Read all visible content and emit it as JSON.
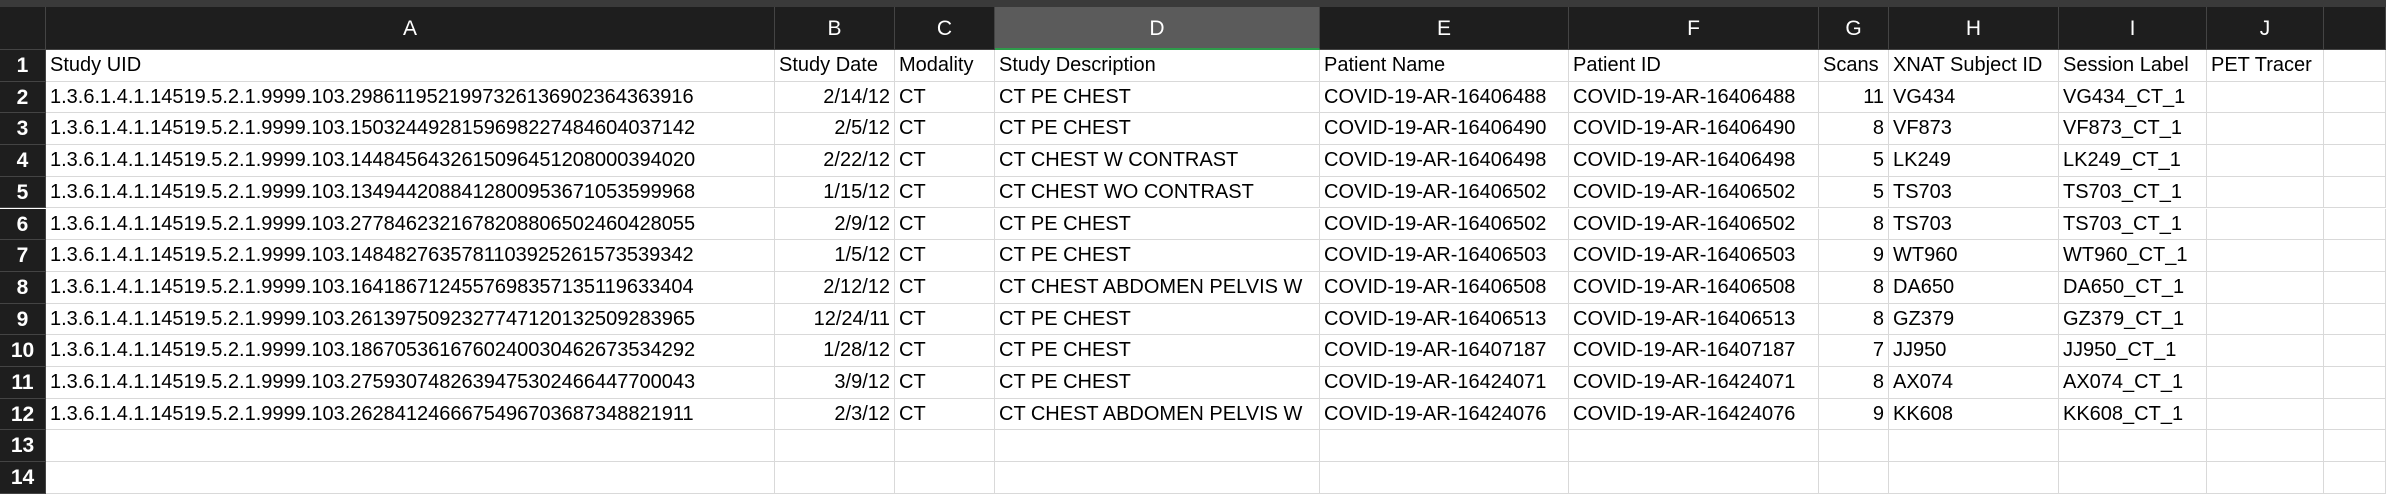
{
  "column_letters": [
    "A",
    "B",
    "C",
    "D",
    "E",
    "F",
    "G",
    "H",
    "I",
    "J"
  ],
  "row_numbers": [
    1,
    2,
    3,
    4,
    5,
    6,
    7,
    8,
    9,
    10,
    11,
    12,
    13,
    14
  ],
  "header": [
    "Study UID",
    "Study Date",
    "Modality",
    "Study Description",
    "Patient Name",
    "Patient ID",
    "Scans",
    "XNAT Subject ID",
    "Session Label",
    "PET Tracer"
  ],
  "rows": [
    [
      "1.3.6.1.4.1.14519.5.2.1.9999.103.2986119521997326136902364363916",
      "2/14/12",
      "CT",
      "CT PE CHEST",
      "COVID-19-AR-16406488",
      "COVID-19-AR-16406488",
      11,
      "VG434",
      "VG434_CT_1"
    ],
    [
      "1.3.6.1.4.1.14519.5.2.1.9999.103.1503244928159698227484604037142",
      "2/5/12",
      "CT",
      "CT PE CHEST",
      "COVID-19-AR-16406490",
      "COVID-19-AR-16406490",
      8,
      "VF873",
      "VF873_CT_1"
    ],
    [
      "1.3.6.1.4.1.14519.5.2.1.9999.103.1448456432615096451208000394020",
      "2/22/12",
      "CT",
      "CT CHEST W CONTRAST",
      "COVID-19-AR-16406498",
      "COVID-19-AR-16406498",
      5,
      "LK249",
      "LK249_CT_1"
    ],
    [
      "1.3.6.1.4.1.14519.5.2.1.9999.103.1349442088412800953671053599968",
      "1/15/12",
      "CT",
      "CT CHEST WO CONTRAST",
      "COVID-19-AR-16406502",
      "COVID-19-AR-16406502",
      5,
      "TS703",
      "TS703_CT_1"
    ],
    [
      "1.3.6.1.4.1.14519.5.2.1.9999.103.2778462321678208806502460428055",
      "2/9/12",
      "CT",
      "CT PE CHEST",
      "COVID-19-AR-16406502",
      "COVID-19-AR-16406502",
      8,
      "TS703",
      "TS703_CT_1"
    ],
    [
      "1.3.6.1.4.1.14519.5.2.1.9999.103.1484827635781103925261573539342",
      "1/5/12",
      "CT",
      "CT PE CHEST",
      "COVID-19-AR-16406503",
      "COVID-19-AR-16406503",
      9,
      "WT960",
      "WT960_CT_1"
    ],
    [
      "1.3.6.1.4.1.14519.5.2.1.9999.103.1641867124557698357135119633404",
      "2/12/12",
      "CT",
      "CT CHEST ABDOMEN PELVIS W",
      "COVID-19-AR-16406508",
      "COVID-19-AR-16406508",
      8,
      "DA650",
      "DA650_CT_1"
    ],
    [
      "1.3.6.1.4.1.14519.5.2.1.9999.103.2613975092327747120132509283965",
      "12/24/11",
      "CT",
      "CT PE CHEST",
      "COVID-19-AR-16406513",
      "COVID-19-AR-16406513",
      8,
      "GZ379",
      "GZ379_CT_1"
    ],
    [
      "1.3.6.1.4.1.14519.5.2.1.9999.103.1867053616760240030462673534292",
      "1/28/12",
      "CT",
      "CT PE CHEST",
      "COVID-19-AR-16407187",
      "COVID-19-AR-16407187",
      7,
      "JJ950",
      "JJ950_CT_1"
    ],
    [
      "1.3.6.1.4.1.14519.5.2.1.9999.103.2759307482639475302466447700043",
      "3/9/12",
      "CT",
      "CT PE CHEST",
      "COVID-19-AR-16424071",
      "COVID-19-AR-16424071",
      8,
      "AX074",
      "AX074_CT_1"
    ],
    [
      "1.3.6.1.4.1.14519.5.2.1.9999.103.2628412466675496703687348821911",
      "2/3/12",
      "CT",
      "CT CHEST ABDOMEN PELVIS W",
      "COVID-19-AR-16424076",
      "COVID-19-AR-16424076",
      9,
      "KK608",
      "KK608_CT_1"
    ]
  ]
}
